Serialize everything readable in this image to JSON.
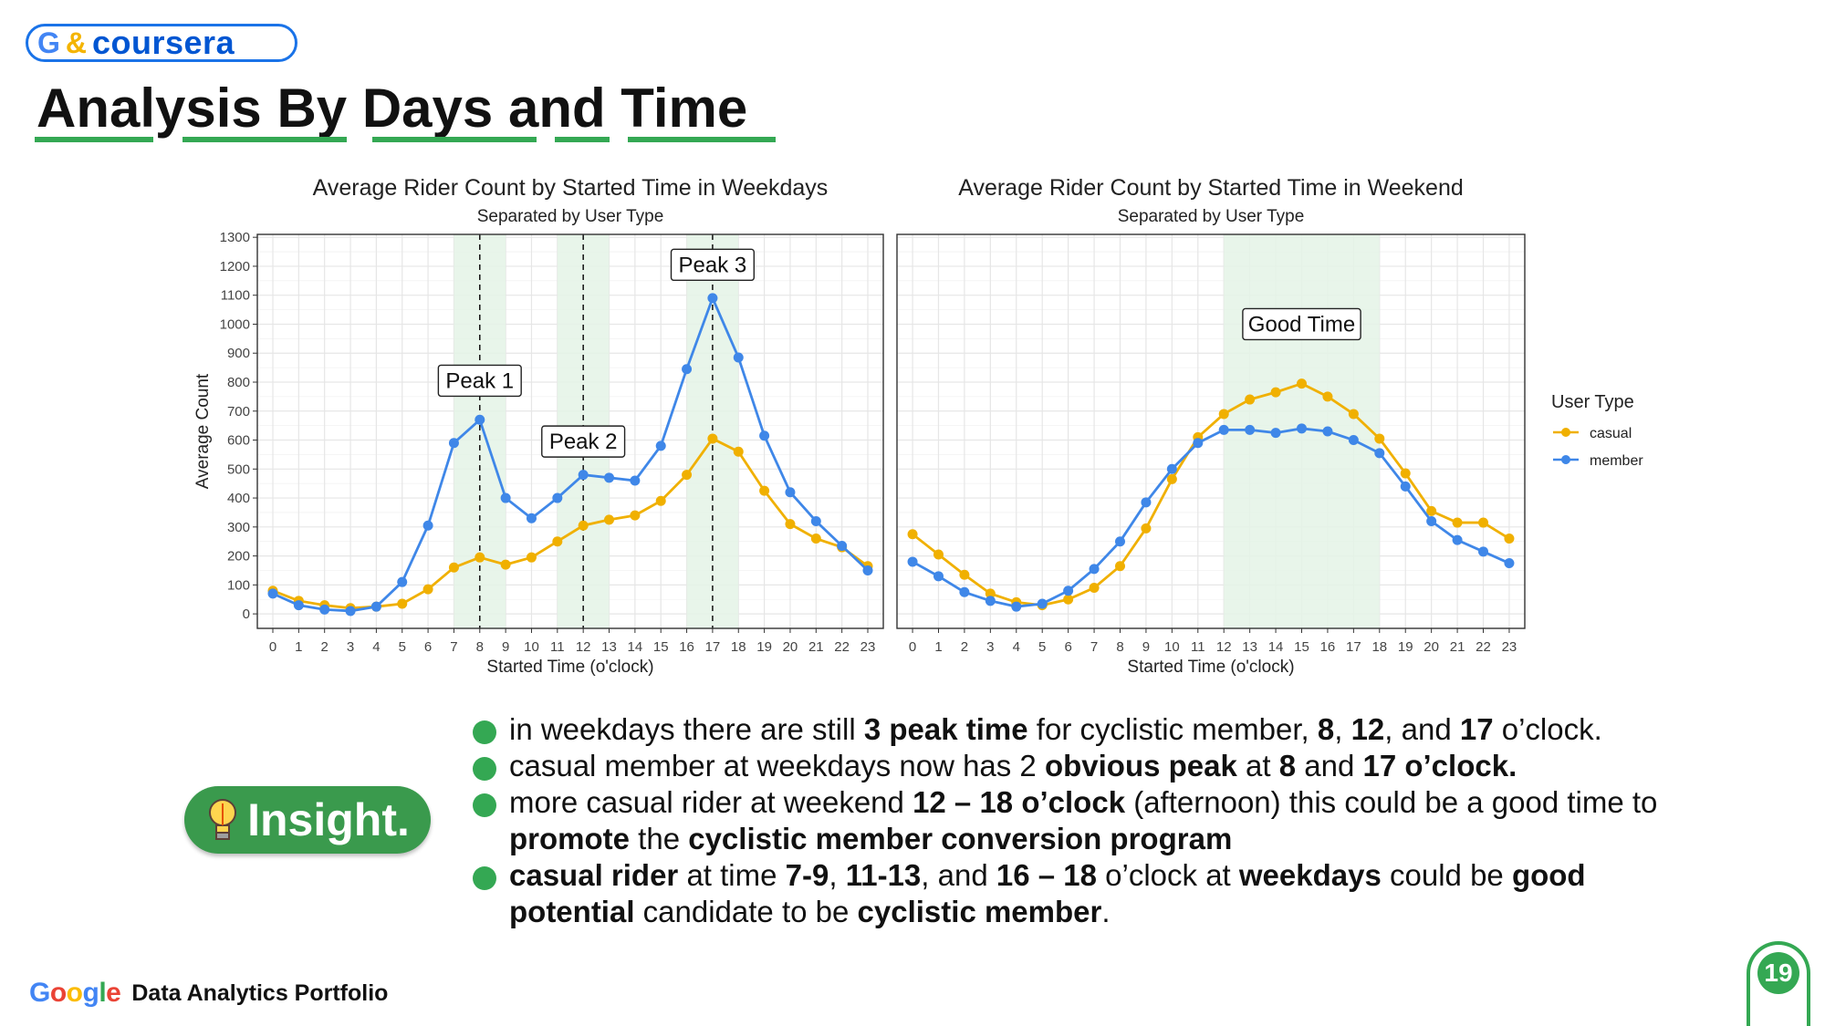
{
  "brand": {
    "g": "G",
    "amp": "&",
    "name": "coursera"
  },
  "title": "Analysis By Days and Time",
  "chart_data": [
    {
      "type": "line",
      "title": "Average Rider Count by Started Time in Weekdays",
      "subtitle": "Separated by User Type",
      "xlabel": "Started Time (o'clock)",
      "ylabel": "Average Count",
      "x": [
        0,
        1,
        2,
        3,
        4,
        5,
        6,
        7,
        8,
        9,
        10,
        11,
        12,
        13,
        14,
        15,
        16,
        17,
        18,
        19,
        20,
        21,
        22,
        23
      ],
      "yticks": [
        0,
        100,
        200,
        300,
        400,
        500,
        600,
        700,
        800,
        900,
        1000,
        1100,
        1200,
        1300
      ],
      "ylim": [
        -50,
        1310
      ],
      "series": [
        {
          "name": "casual",
          "color": "#f0b000",
          "values": [
            80,
            45,
            30,
            20,
            25,
            35,
            85,
            160,
            195,
            170,
            195,
            250,
            305,
            325,
            340,
            390,
            480,
            605,
            560,
            425,
            310,
            260,
            230,
            165
          ]
        },
        {
          "name": "member",
          "color": "#3f87e8",
          "values": [
            70,
            30,
            15,
            10,
            25,
            110,
            305,
            590,
            670,
            400,
            330,
            400,
            480,
            470,
            460,
            580,
            845,
            1090,
            885,
            615,
            420,
            320,
            235,
            150
          ]
        }
      ],
      "shaded_bands": [
        [
          7,
          9
        ],
        [
          11,
          13
        ],
        [
          16,
          18
        ]
      ],
      "vlines": [
        8,
        12,
        17
      ],
      "annotations": [
        {
          "text": "Peak 1",
          "x": 8,
          "y": 805
        },
        {
          "text": "Peak 2",
          "x": 12,
          "y": 595
        },
        {
          "text": "Peak 3",
          "x": 17,
          "y": 1205
        }
      ],
      "grid": true
    },
    {
      "type": "line",
      "title": "Average Rider Count by Started Time in Weekend",
      "subtitle": "Separated by User Type",
      "xlabel": "Started Time (o'clock)",
      "ylabel": "",
      "x": [
        0,
        1,
        2,
        3,
        4,
        5,
        6,
        7,
        8,
        9,
        10,
        11,
        12,
        13,
        14,
        15,
        16,
        17,
        18,
        19,
        20,
        21,
        22,
        23
      ],
      "ylim": [
        -50,
        1310
      ],
      "series": [
        {
          "name": "casual",
          "color": "#f0b000",
          "values": [
            275,
            205,
            135,
            70,
            40,
            30,
            50,
            90,
            165,
            295,
            465,
            610,
            690,
            740,
            765,
            795,
            750,
            690,
            605,
            485,
            355,
            315,
            315,
            260
          ]
        },
        {
          "name": "member",
          "color": "#3f87e8",
          "values": [
            180,
            130,
            75,
            45,
            25,
            35,
            80,
            155,
            250,
            385,
            500,
            590,
            635,
            635,
            625,
            640,
            630,
            600,
            555,
            440,
            320,
            255,
            215,
            175
          ]
        }
      ],
      "shaded_bands": [
        [
          12,
          18
        ]
      ],
      "annotations": [
        {
          "text": "Good Time",
          "x": 15,
          "y": 1000
        }
      ],
      "grid": true
    }
  ],
  "legend": {
    "title": "User Type",
    "entries": [
      "casual",
      "member"
    ],
    "position": "right"
  },
  "insight_label": "Insight.",
  "bullets": [
    [
      {
        "t": "in weekdays there are still "
      },
      {
        "t": "3 peak time",
        "b": true
      },
      {
        "t": " for cyclistic member, "
      },
      {
        "t": "8",
        "b": true
      },
      {
        "t": ", "
      },
      {
        "t": "12",
        "b": true
      },
      {
        "t": ", and "
      },
      {
        "t": "17",
        "b": true
      },
      {
        "t": " o’clock."
      }
    ],
    [
      {
        "t": "casual member at weekdays now has 2 "
      },
      {
        "t": "obvious peak",
        "b": true
      },
      {
        "t": " at "
      },
      {
        "t": "8",
        "b": true
      },
      {
        "t": " and "
      },
      {
        "t": "17 o’clock.",
        "b": true
      }
    ],
    [
      {
        "t": "more casual rider at weekend "
      },
      {
        "t": "12 – 18 o’clock",
        "b": true
      },
      {
        "t": " (afternoon) this could be a good time to "
      },
      {
        "t": "promote",
        "b": true
      },
      {
        "t": " the "
      },
      {
        "t": "cyclistic member conversion program",
        "b": true
      }
    ],
    [
      {
        "t": "casual rider",
        "b": true
      },
      {
        "t": " at time "
      },
      {
        "t": "7-9",
        "b": true
      },
      {
        "t": ", "
      },
      {
        "t": "11-13",
        "b": true
      },
      {
        "t": ", and "
      },
      {
        "t": "16 – 18",
        "b": true
      },
      {
        "t": " o’clock at "
      },
      {
        "t": "weekdays",
        "b": true
      },
      {
        "t": " could be "
      },
      {
        "t": "good potential",
        "b": true
      },
      {
        "t": " candidate to be "
      },
      {
        "t": "cyclistic member",
        "b": true
      },
      {
        "t": "."
      }
    ]
  ],
  "footer": {
    "google": "Google",
    "text": "Data Analytics Portfolio"
  },
  "page_number": "19",
  "colors": {
    "green": "#34a853",
    "blue": "#1a73e8",
    "band": "#e4f3e6"
  }
}
